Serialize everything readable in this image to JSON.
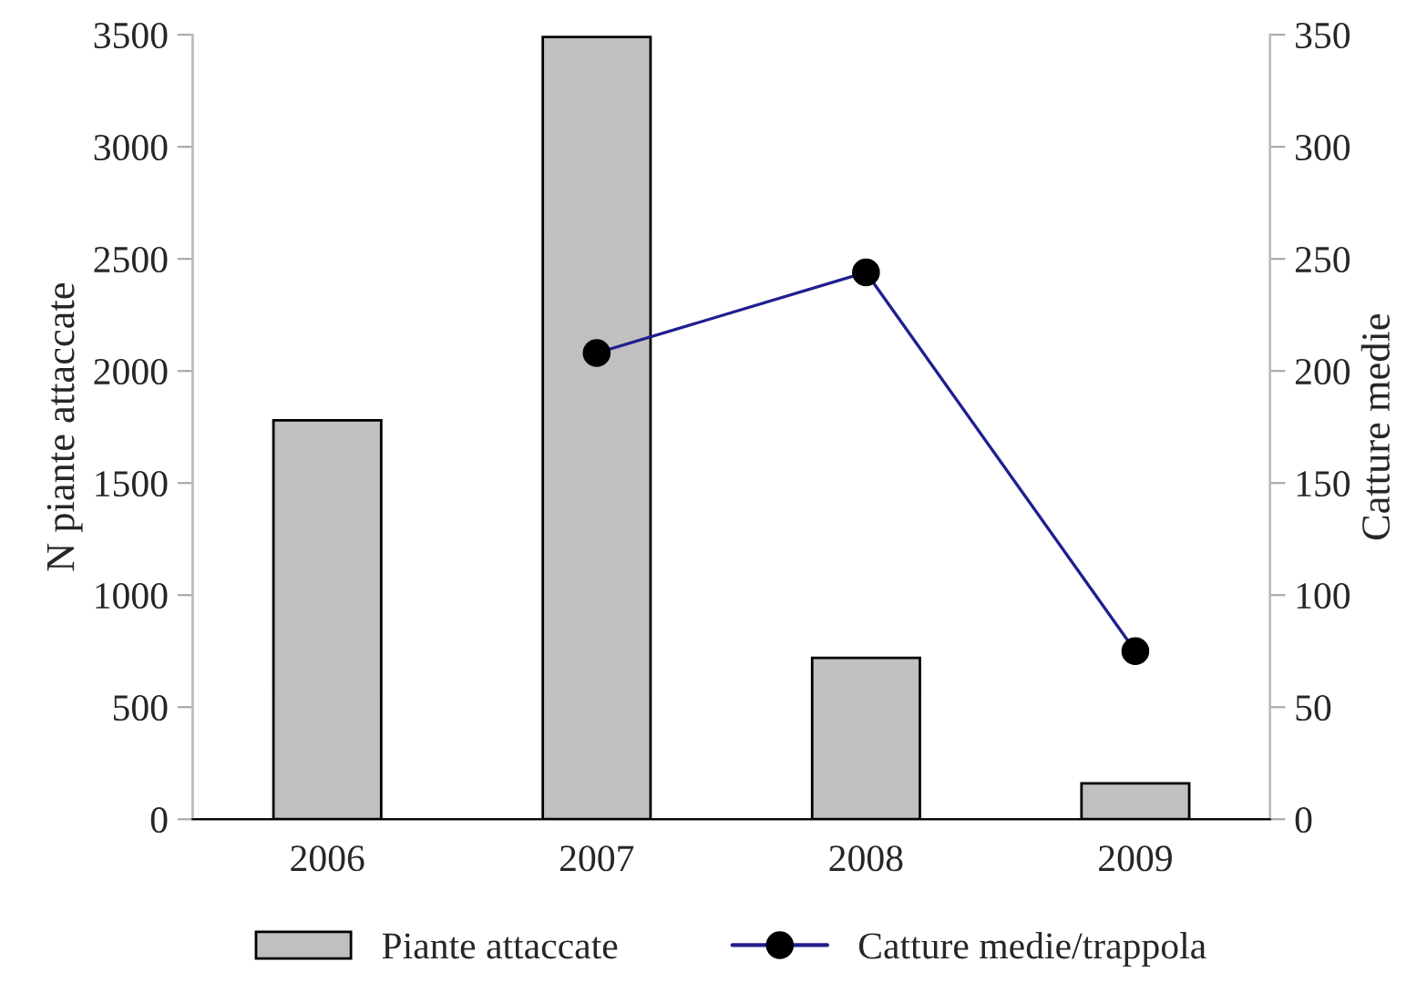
{
  "chart_data": {
    "type": "bar",
    "categories": [
      "2006",
      "2007",
      "2008",
      "2009"
    ],
    "ylabel": "N piante attaccate",
    "y2label": "Catture medie",
    "ylim": [
      0,
      3500
    ],
    "yticks": [
      0,
      500,
      1000,
      1500,
      2000,
      2500,
      3000,
      3500
    ],
    "y2lim": [
      0,
      350
    ],
    "y2ticks": [
      0,
      50,
      100,
      150,
      200,
      250,
      300,
      350
    ],
    "series": [
      {
        "name": "Piante attaccate",
        "color": "#c0c0c0",
        "values": [
          1780,
          3490,
          720,
          160
        ]
      },
      {
        "name": "Catture medie/trappola",
        "type": "line",
        "axis": "y2",
        "color": "#1f1f8f",
        "values": [
          null,
          208,
          244,
          75
        ]
      }
    ],
    "marker": "circle",
    "legend": "bottom",
    "grid": false
  }
}
